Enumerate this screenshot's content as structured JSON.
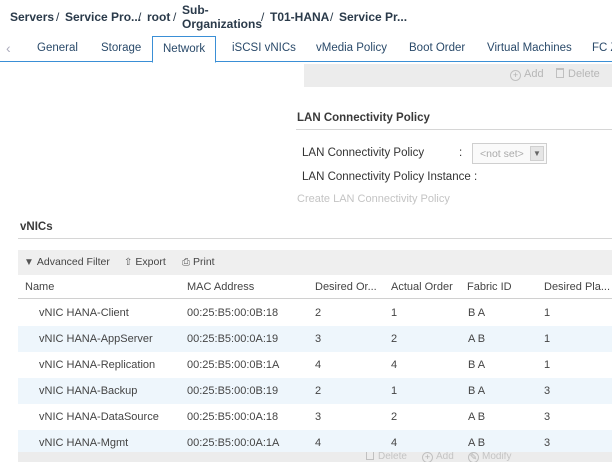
{
  "breadcrumb": {
    "servers": "Servers",
    "service_pro": "Service Pro...",
    "root": "root",
    "sub_org_line1": "Sub-",
    "sub_org_line2": "Organizations",
    "t01": "T01-HANA",
    "current": "Service Pr...",
    "separator": "/"
  },
  "tabs": {
    "items": [
      {
        "label": "General"
      },
      {
        "label": "Storage"
      },
      {
        "label": "Network"
      },
      {
        "label": "iSCSI vNICs"
      },
      {
        "label": "vMedia Policy"
      },
      {
        "label": "Boot Order"
      },
      {
        "label": "Virtual Machines"
      },
      {
        "label": "FC Z"
      }
    ],
    "active": "Network",
    "prev_icon": "chevron-left-icon"
  },
  "top_actions": {
    "add": "Add",
    "delete": "Delete"
  },
  "lan": {
    "title": "LAN Connectivity Policy",
    "policy_label": "LAN Connectivity Policy",
    "colon": ":",
    "select_value": "<not set>",
    "instance_label": "LAN Connectivity Policy Instance :",
    "create_link": "Create LAN Connectivity Policy"
  },
  "vnics": {
    "title": "vNICs",
    "toolbar": {
      "filter": "Advanced Filter",
      "export": "Export",
      "print": "Print"
    },
    "columns": [
      "Name",
      "MAC Address",
      "Desired Or...",
      "Actual Order",
      "Fabric ID",
      "Desired Pla..."
    ],
    "rows": [
      [
        "vNIC HANA-Client",
        "00:25:B5:00:0B:18",
        "2",
        "1",
        "B A",
        "1"
      ],
      [
        "vNIC HANA-AppServer",
        "00:25:B5:00:0A:19",
        "3",
        "2",
        "A B",
        "1"
      ],
      [
        "vNIC HANA-Replication",
        "00:25:B5:00:0B:1A",
        "4",
        "4",
        "B A",
        "1"
      ],
      [
        "vNIC HANA-Backup",
        "00:25:B5:00:0B:19",
        "2",
        "1",
        "B A",
        "3"
      ],
      [
        "vNIC HANA-DataSource",
        "00:25:B5:00:0A:18",
        "3",
        "2",
        "A B",
        "3"
      ],
      [
        "vNIC HANA-Mgmt",
        "00:25:B5:00:0A:1A",
        "4",
        "4",
        "A B",
        "3"
      ]
    ],
    "bottom_actions": {
      "delete": "Delete",
      "add": "Add",
      "modify": "Modify"
    }
  },
  "colors": {
    "accent": "#3a8fd6",
    "row_alt": "#eef6fc"
  }
}
